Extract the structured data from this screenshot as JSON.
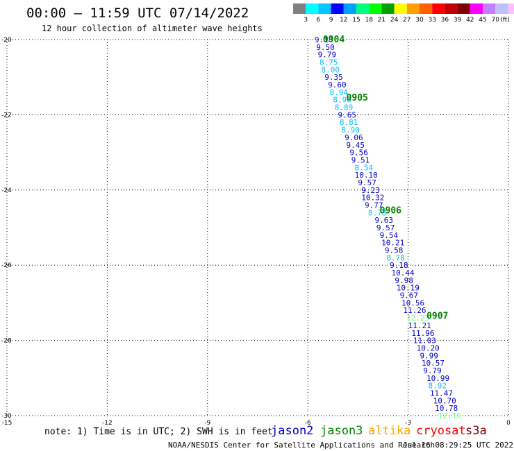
{
  "header": {
    "title": "00:00 – 11:59 UTC 07/14/2022",
    "subtitle": "12 hour collection of altimeter wave heights"
  },
  "legend": {
    "colors": [
      "#808080",
      "#00ffff",
      "#00c8ff",
      "#0000ff",
      "#00a0ff",
      "#00ff80",
      "#00ff00",
      "#00a000",
      "#ffff00",
      "#ffa000",
      "#ff6000",
      "#ff0000",
      "#c00000",
      "#800000",
      "#ff00ff",
      "#c080ff",
      "#c0c0ff",
      "#ffc0ff",
      "#000000"
    ],
    "labels": [
      "3",
      "6",
      "9",
      "12",
      "15",
      "18",
      "21",
      "24",
      "27",
      "30",
      "33",
      "36",
      "39",
      "42",
      "45",
      "70"
    ],
    "unit": "(ft)"
  },
  "chart_data": {
    "type": "scatter",
    "xlim": [
      -15,
      0
    ],
    "ylim": [
      -30,
      -20
    ],
    "x_ticks": [
      "-15",
      "-12",
      "-9",
      "-6",
      "-3",
      "0"
    ],
    "y_ticks": [
      "-20",
      "-22",
      "-24",
      "-26",
      "-28",
      "-30"
    ],
    "grid": true,
    "points": [
      {
        "x": -5.8,
        "y": -20.0,
        "label": "9.18",
        "color": "#0000cd"
      },
      {
        "x": -5.75,
        "y": -20.2,
        "label": "9.50",
        "color": "#0000cd"
      },
      {
        "x": -5.7,
        "y": -20.4,
        "label": "9.79",
        "color": "#0000cd"
      },
      {
        "x": -5.65,
        "y": -20.6,
        "label": "8.75",
        "color": "#00bfff"
      },
      {
        "x": -5.6,
        "y": -20.8,
        "label": "8.00",
        "color": "#00bfff"
      },
      {
        "x": -5.5,
        "y": -21.0,
        "label": "9.35",
        "color": "#0000cd"
      },
      {
        "x": -5.4,
        "y": -21.2,
        "label": "9.60",
        "color": "#0000cd"
      },
      {
        "x": -5.35,
        "y": -21.4,
        "label": "8.94",
        "color": "#00bfff"
      },
      {
        "x": -5.25,
        "y": -21.6,
        "label": "8.96",
        "color": "#00bfff"
      },
      {
        "x": -5.2,
        "y": -21.8,
        "label": "8.89",
        "color": "#00bfff"
      },
      {
        "x": -5.1,
        "y": -22.0,
        "label": "9.65",
        "color": "#0000cd"
      },
      {
        "x": -5.05,
        "y": -22.2,
        "label": "8.81",
        "color": "#00bfff"
      },
      {
        "x": -5.0,
        "y": -22.4,
        "label": "8.90",
        "color": "#00bfff"
      },
      {
        "x": -4.9,
        "y": -22.6,
        "label": "9.06",
        "color": "#0000cd"
      },
      {
        "x": -4.85,
        "y": -22.8,
        "label": "9.45",
        "color": "#0000cd"
      },
      {
        "x": -4.75,
        "y": -23.0,
        "label": "9.56",
        "color": "#0000cd"
      },
      {
        "x": -4.7,
        "y": -23.2,
        "label": "9.51",
        "color": "#0000cd"
      },
      {
        "x": -4.6,
        "y": -23.4,
        "label": "8.54",
        "color": "#00bfff"
      },
      {
        "x": -4.6,
        "y": -23.6,
        "label": "10.10",
        "color": "#0000cd"
      },
      {
        "x": -4.5,
        "y": -23.8,
        "label": "9.57",
        "color": "#0000cd"
      },
      {
        "x": -4.4,
        "y": -24.0,
        "label": "9.23",
        "color": "#0000cd"
      },
      {
        "x": -4.4,
        "y": -24.2,
        "label": "10.32",
        "color": "#0000cd"
      },
      {
        "x": -4.3,
        "y": -24.4,
        "label": "9.77",
        "color": "#0000cd"
      },
      {
        "x": -4.2,
        "y": -24.6,
        "label": "8.73",
        "color": "#00bfff"
      },
      {
        "x": -4.0,
        "y": -24.8,
        "label": "9.63",
        "color": "#0000cd"
      },
      {
        "x": -3.95,
        "y": -25.0,
        "label": "9.57",
        "color": "#0000cd"
      },
      {
        "x": -3.85,
        "y": -25.2,
        "label": "9.54",
        "color": "#0000cd"
      },
      {
        "x": -3.8,
        "y": -25.4,
        "label": "10.21",
        "color": "#0000cd"
      },
      {
        "x": -3.7,
        "y": -25.6,
        "label": "9.58",
        "color": "#0000cd"
      },
      {
        "x": -3.65,
        "y": -25.8,
        "label": "8.78",
        "color": "#00bfff"
      },
      {
        "x": -3.55,
        "y": -26.0,
        "label": "9.18",
        "color": "#0000cd"
      },
      {
        "x": -3.5,
        "y": -26.2,
        "label": "10.44",
        "color": "#0000cd"
      },
      {
        "x": -3.4,
        "y": -26.4,
        "label": "9.98",
        "color": "#0000cd"
      },
      {
        "x": -3.35,
        "y": -26.6,
        "label": "10.19",
        "color": "#0000cd"
      },
      {
        "x": -3.25,
        "y": -26.8,
        "label": "9.67",
        "color": "#0000cd"
      },
      {
        "x": -3.2,
        "y": -27.0,
        "label": "10.56",
        "color": "#0000cd"
      },
      {
        "x": -3.15,
        "y": -27.2,
        "label": "11.26",
        "color": "#0000cd"
      },
      {
        "x": -3.05,
        "y": -27.4,
        "label": "12.23",
        "color": "#66ff66"
      },
      {
        "x": -3.0,
        "y": -27.6,
        "label": "11.21",
        "color": "#0000cd"
      },
      {
        "x": -2.9,
        "y": -27.8,
        "label": "11.96",
        "color": "#0000cd"
      },
      {
        "x": -2.85,
        "y": -28.0,
        "label": "11.03",
        "color": "#0000cd"
      },
      {
        "x": -2.75,
        "y": -28.2,
        "label": "10.20",
        "color": "#0000cd"
      },
      {
        "x": -2.65,
        "y": -28.4,
        "label": "9.99",
        "color": "#0000cd"
      },
      {
        "x": -2.6,
        "y": -28.6,
        "label": "10.57",
        "color": "#0000cd"
      },
      {
        "x": -2.55,
        "y": -28.8,
        "label": "9.79",
        "color": "#0000cd"
      },
      {
        "x": -2.45,
        "y": -29.0,
        "label": "10.99",
        "color": "#0000cd"
      },
      {
        "x": -2.4,
        "y": -29.2,
        "label": "8.92",
        "color": "#00bfff"
      },
      {
        "x": -2.35,
        "y": -29.4,
        "label": "11.47",
        "color": "#0000cd"
      },
      {
        "x": -2.25,
        "y": -29.6,
        "label": "10.70",
        "color": "#0000cd"
      },
      {
        "x": -2.2,
        "y": -29.8,
        "label": "10.78",
        "color": "#0000cd"
      },
      {
        "x": -2.1,
        "y": -30.0,
        "label": "12.16",
        "color": "#66ff66"
      }
    ],
    "annotations": [
      {
        "x": -5.55,
        "y": -20.0,
        "text": "0904"
      },
      {
        "x": -4.85,
        "y": -21.55,
        "text": "0905"
      },
      {
        "x": -3.85,
        "y": -24.55,
        "text": "0906"
      },
      {
        "x": -2.45,
        "y": -27.35,
        "text": "0907"
      }
    ],
    "annotation_color": "#008000"
  },
  "footer": {
    "note": "note: 1) Time is in UTC; 2) SWH is in feet",
    "satellites": [
      {
        "name": "jason2",
        "color": "#0000cd"
      },
      {
        "name": "jason3",
        "color": "#008000"
      },
      {
        "name": "altika",
        "color": "#ffa500"
      },
      {
        "name": "cryosat",
        "color": "#ff0000"
      },
      {
        "name": "s3a",
        "color": "#800000"
      }
    ],
    "credit": "NOAA/NESDIS Center for Satellite Applications and Research",
    "timestamp": "Jul 16 08:29:25 UTC 2022"
  }
}
